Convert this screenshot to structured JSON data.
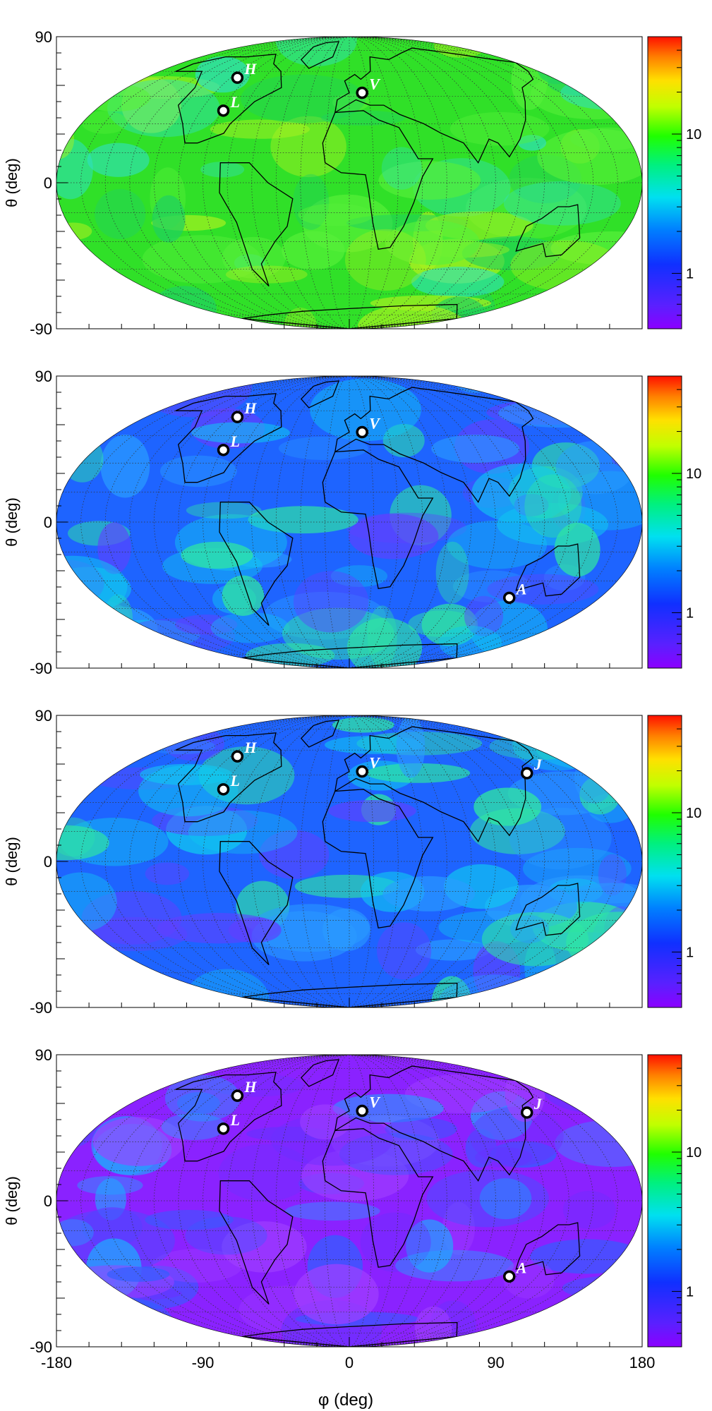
{
  "figure": {
    "xlabel": "φ (deg)",
    "ylabel": "θ (deg)",
    "x_ticks": [
      "-180",
      "-90",
      "0",
      "90",
      "180"
    ],
    "y_ticks": [
      "90",
      "0",
      "-90"
    ],
    "colorbar_ticks": [
      "10",
      "1"
    ],
    "colors": {
      "continent_outline": "#000000",
      "graticule": "#333333",
      "marker_fill": "#ffffff",
      "marker_stroke": "#000000"
    }
  },
  "chart_data": [
    {
      "type": "heatmap",
      "projection": "mollweide",
      "xlim": [
        -180,
        180
      ],
      "ylim": [
        -90,
        90
      ],
      "colorscale": "rainbow-log",
      "colorbar_range": [
        0.4,
        50
      ],
      "grid": true,
      "background_level": "green",
      "detectors": [
        {
          "label": "H",
          "phi": -99,
          "theta": 56
        },
        {
          "label": "L",
          "phi": -89,
          "theta": 37
        },
        {
          "label": "V",
          "phi": 10,
          "theta": 47
        }
      ]
    },
    {
      "type": "heatmap",
      "projection": "mollweide",
      "xlim": [
        -180,
        180
      ],
      "ylim": [
        -90,
        90
      ],
      "colorscale": "rainbow-log",
      "colorbar_range": [
        0.4,
        50
      ],
      "grid": true,
      "background_level": "blue",
      "detectors": [
        {
          "label": "H",
          "phi": -99,
          "theta": 56
        },
        {
          "label": "L",
          "phi": -89,
          "theta": 37
        },
        {
          "label": "V",
          "phi": 10,
          "theta": 47
        },
        {
          "label": "A",
          "phi": 115,
          "theta": -39
        }
      ]
    },
    {
      "type": "heatmap",
      "projection": "mollweide",
      "xlim": [
        -180,
        180
      ],
      "ylim": [
        -90,
        90
      ],
      "colorscale": "rainbow-log",
      "colorbar_range": [
        0.4,
        50
      ],
      "grid": true,
      "background_level": "blue",
      "detectors": [
        {
          "label": "H",
          "phi": -99,
          "theta": 56
        },
        {
          "label": "L",
          "phi": -89,
          "theta": 37
        },
        {
          "label": "V",
          "phi": 10,
          "theta": 47
        },
        {
          "label": "J",
          "phi": 137,
          "theta": 46
        }
      ]
    },
    {
      "type": "heatmap",
      "projection": "mollweide",
      "xlim": [
        -180,
        180
      ],
      "ylim": [
        -90,
        90
      ],
      "colorscale": "rainbow-log",
      "colorbar_range": [
        0.4,
        50
      ],
      "grid": true,
      "background_level": "violet",
      "detectors": [
        {
          "label": "H",
          "phi": -99,
          "theta": 56
        },
        {
          "label": "L",
          "phi": -89,
          "theta": 37
        },
        {
          "label": "V",
          "phi": 10,
          "theta": 47
        },
        {
          "label": "J",
          "phi": 137,
          "theta": 46
        },
        {
          "label": "A",
          "phi": 115,
          "theta": -39
        }
      ]
    }
  ]
}
